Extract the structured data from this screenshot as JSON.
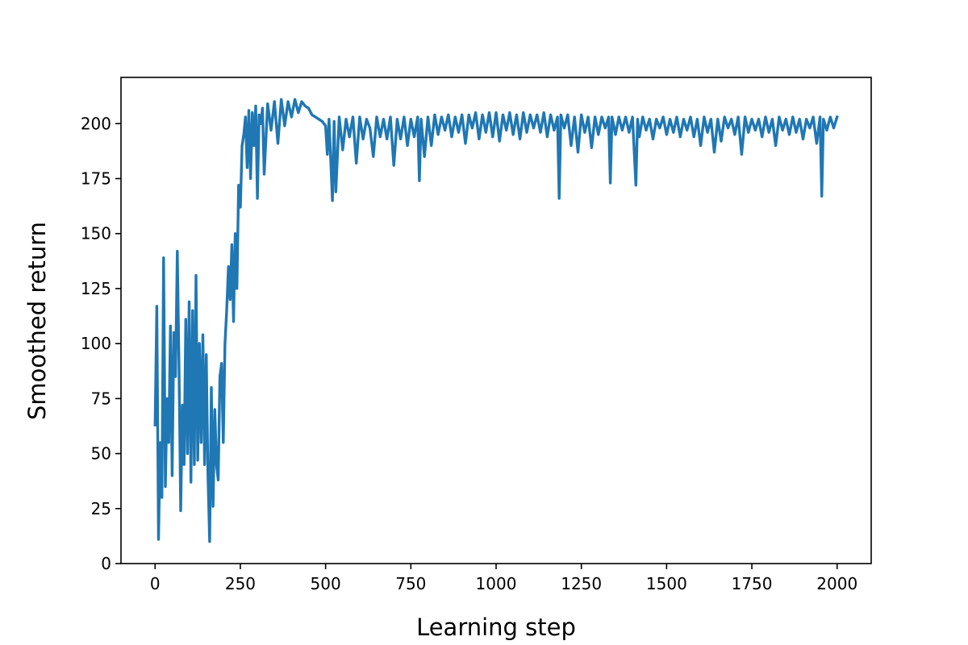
{
  "chart_data": {
    "type": "line",
    "title": "",
    "xlabel": "Learning step",
    "ylabel": "Smoothed return",
    "xlim": [
      -100,
      2100
    ],
    "ylim": [
      0,
      221
    ],
    "xticks": [
      0,
      250,
      500,
      750,
      1000,
      1250,
      1500,
      1750,
      2000
    ],
    "yticks": [
      0,
      25,
      50,
      75,
      100,
      125,
      150,
      175,
      200
    ],
    "grid": false,
    "legend": "none",
    "series": [
      {
        "color": "#1f77b4",
        "x": [
          0,
          5,
          10,
          15,
          20,
          25,
          30,
          35,
          40,
          45,
          50,
          55,
          60,
          65,
          70,
          75,
          80,
          85,
          90,
          95,
          100,
          105,
          110,
          115,
          120,
          125,
          130,
          135,
          140,
          145,
          150,
          155,
          160,
          165,
          170,
          175,
          180,
          185,
          190,
          195,
          200,
          205,
          210,
          215,
          220,
          225,
          230,
          235,
          240,
          245,
          250,
          255,
          260,
          265,
          270,
          275,
          280,
          285,
          290,
          295,
          300,
          305,
          310,
          315,
          320,
          330,
          340,
          350,
          360,
          370,
          380,
          390,
          400,
          410,
          420,
          430,
          440,
          450,
          460,
          470,
          480,
          490,
          500,
          505,
          510,
          520,
          525,
          530,
          540,
          550,
          560,
          570,
          580,
          590,
          600,
          610,
          620,
          630,
          640,
          650,
          660,
          670,
          680,
          690,
          700,
          710,
          720,
          730,
          740,
          750,
          760,
          770,
          775,
          780,
          790,
          800,
          810,
          820,
          830,
          840,
          850,
          860,
          870,
          880,
          890,
          900,
          910,
          920,
          930,
          940,
          950,
          960,
          970,
          980,
          990,
          1000,
          1010,
          1020,
          1030,
          1040,
          1050,
          1060,
          1070,
          1080,
          1090,
          1100,
          1110,
          1120,
          1130,
          1140,
          1150,
          1160,
          1170,
          1180,
          1185,
          1190,
          1200,
          1210,
          1220,
          1230,
          1240,
          1250,
          1260,
          1270,
          1280,
          1290,
          1300,
          1310,
          1320,
          1330,
          1335,
          1340,
          1350,
          1360,
          1370,
          1380,
          1390,
          1400,
          1410,
          1415,
          1420,
          1430,
          1440,
          1450,
          1460,
          1470,
          1480,
          1490,
          1500,
          1510,
          1520,
          1530,
          1540,
          1550,
          1560,
          1570,
          1580,
          1590,
          1600,
          1610,
          1620,
          1630,
          1640,
          1650,
          1660,
          1670,
          1680,
          1690,
          1700,
          1710,
          1720,
          1730,
          1740,
          1750,
          1760,
          1770,
          1780,
          1790,
          1800,
          1810,
          1820,
          1830,
          1840,
          1850,
          1860,
          1870,
          1880,
          1890,
          1900,
          1910,
          1920,
          1930,
          1940,
          1950,
          1955,
          1960,
          1970,
          1980,
          1990,
          2000
        ],
        "values": [
          63,
          117,
          11,
          55,
          30,
          139,
          35,
          75,
          55,
          108,
          40,
          105,
          85,
          142,
          90,
          24,
          72,
          45,
          111,
          50,
          119,
          37,
          115,
          45,
          131,
          47,
          100,
          55,
          104,
          45,
          95,
          40,
          10,
          80,
          26,
          70,
          45,
          38,
          85,
          91,
          55,
          100,
          115,
          135,
          120,
          145,
          110,
          150,
          125,
          172,
          162,
          190,
          195,
          203,
          180,
          206,
          175,
          205,
          190,
          208,
          166,
          204,
          200,
          207,
          177,
          209,
          197,
          210,
          191,
          211,
          199,
          210,
          203,
          211,
          205,
          210,
          208,
          207,
          204,
          203,
          202,
          201,
          199,
          186,
          202,
          165,
          201,
          169,
          203,
          188,
          202,
          194,
          203,
          182,
          203,
          193,
          202,
          198,
          185,
          203,
          194,
          202,
          193,
          203,
          181,
          202,
          193,
          203,
          190,
          202,
          194,
          203,
          174,
          202,
          185,
          203,
          190,
          204,
          195,
          203,
          197,
          204,
          194,
          203,
          196,
          204,
          191,
          204,
          198,
          205,
          193,
          204,
          196,
          205,
          194,
          205,
          192,
          204,
          197,
          205,
          195,
          204,
          193,
          205,
          196,
          204,
          198,
          204,
          196,
          205,
          194,
          204,
          197,
          203,
          166,
          204,
          198,
          204,
          190,
          203,
          187,
          204,
          196,
          203,
          189,
          203,
          195,
          203,
          198,
          203,
          173,
          203,
          195,
          203,
          197,
          203,
          196,
          203,
          172,
          202,
          194,
          203,
          197,
          202,
          193,
          202,
          198,
          203,
          195,
          202,
          196,
          203,
          194,
          202,
          197,
          203,
          194,
          202,
          190,
          203,
          196,
          202,
          187,
          202,
          192,
          203,
          198,
          202,
          195,
          203,
          186,
          203,
          196,
          202,
          197,
          202,
          194,
          203,
          196,
          202,
          190,
          203,
          197,
          202,
          195,
          203,
          196,
          202,
          193,
          202,
          198,
          203,
          191,
          203,
          167,
          202,
          197,
          203,
          198,
          203
        ]
      }
    ]
  }
}
